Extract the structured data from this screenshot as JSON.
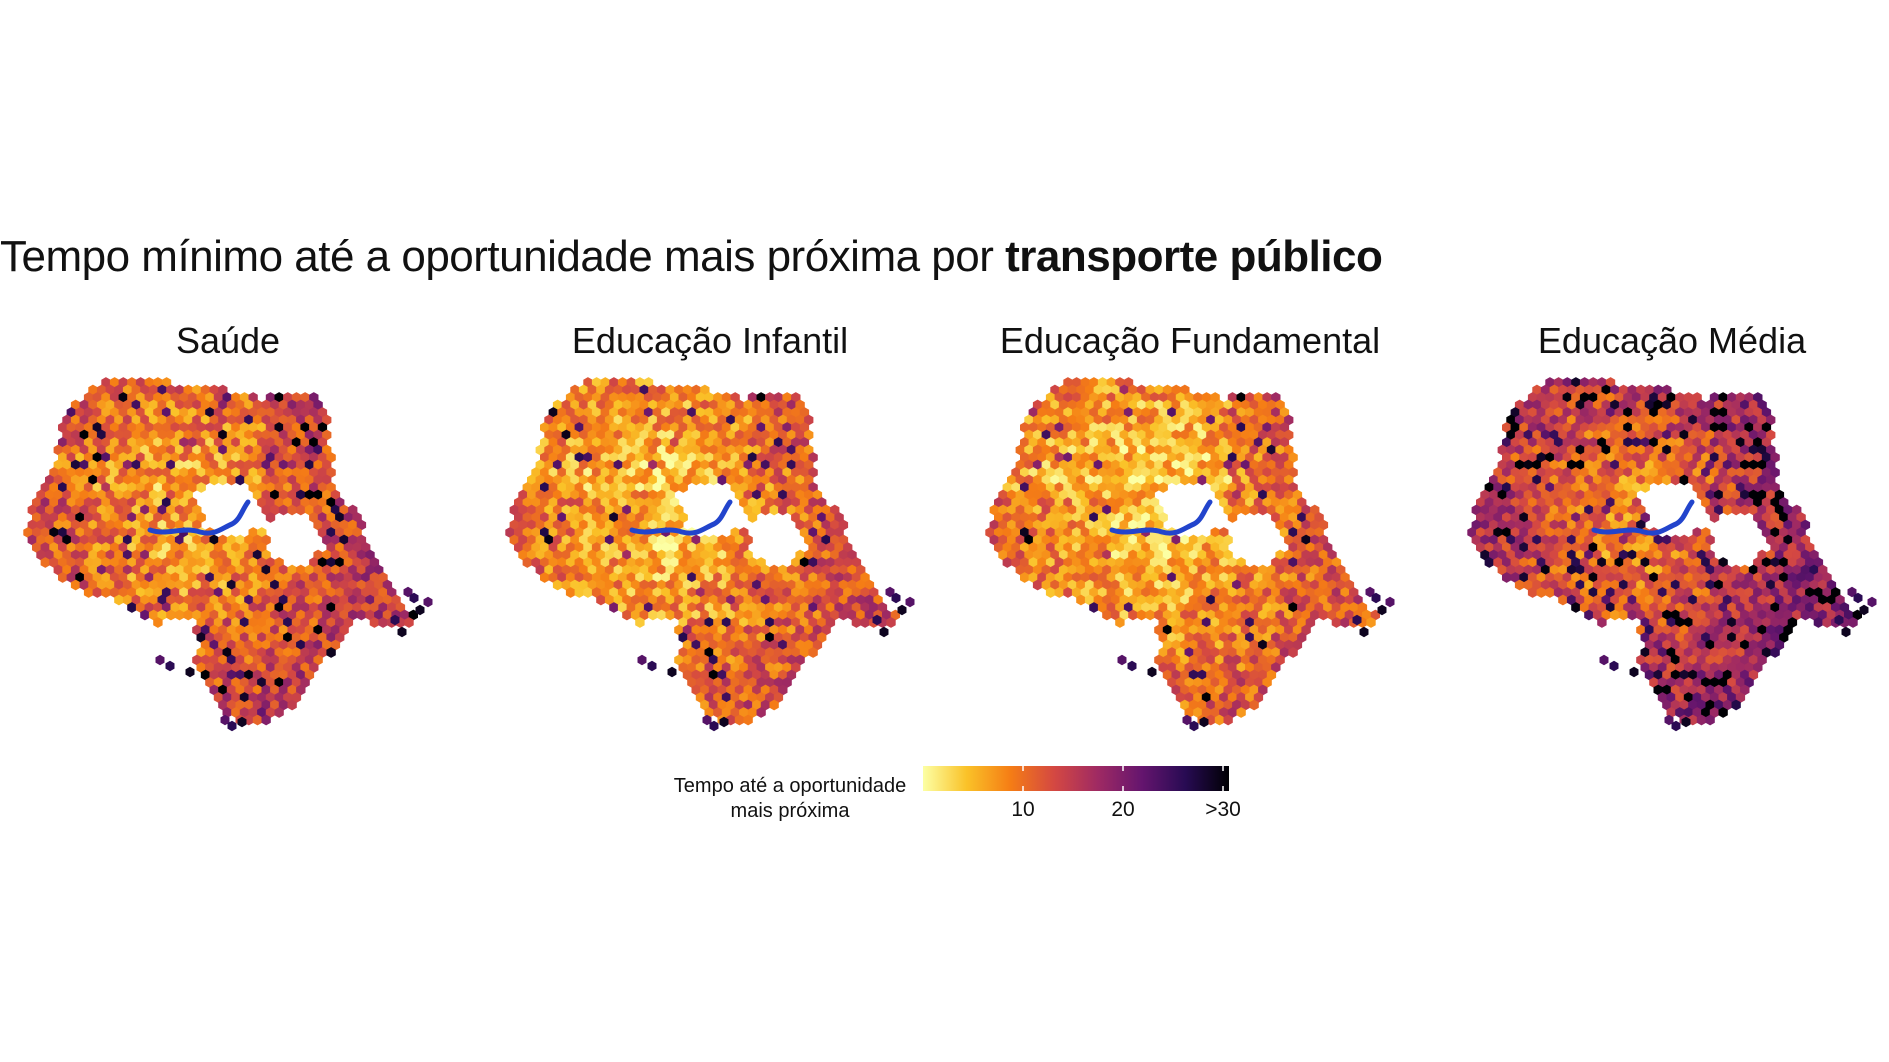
{
  "title": {
    "normal": "Tempo mínimo até a oportunidade mais próxima por ",
    "bold": "transporte público"
  },
  "panels": [
    {
      "label": "Saúde",
      "mean_level": 0.3,
      "dark_share": 0.1
    },
    {
      "label": "Educação Infantil",
      "mean_level": 0.22,
      "dark_share": 0.06
    },
    {
      "label": "Educação Fundamental",
      "mean_level": 0.2,
      "dark_share": 0.05
    },
    {
      "label": "Educação Média",
      "mean_level": 0.42,
      "dark_share": 0.18
    }
  ],
  "legend": {
    "title_line1": "Tempo até a oportunidade",
    "title_line2": "mais próxima",
    "ticks": [
      "10",
      "20",
      ">30"
    ],
    "tick_values": [
      10,
      20,
      30
    ],
    "range": [
      0,
      30
    ],
    "colors": [
      "#fcffa4",
      "#fac228",
      "#f57d15",
      "#d44842",
      "#9f2a63",
      "#65156e",
      "#280b53",
      "#000004"
    ]
  },
  "river_color": "#2244cc"
}
